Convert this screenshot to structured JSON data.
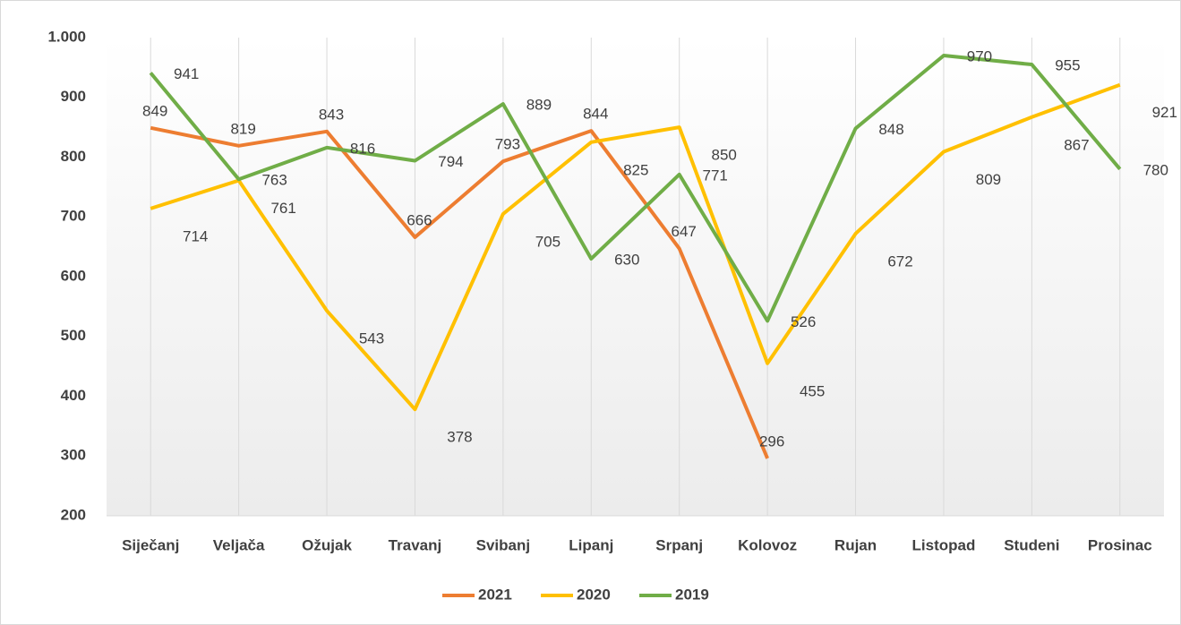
{
  "chart_data": {
    "type": "line",
    "categories": [
      "Siječanj",
      "Veljača",
      "Ožujak",
      "Travanj",
      "Svibanj",
      "Lipanj",
      "Srpanj",
      "Kolovoz",
      "Rujan",
      "Listopad",
      "Studeni",
      "Prosinac"
    ],
    "series": [
      {
        "name": "2021",
        "color": "#ed7d31",
        "values": [
          849,
          819,
          843,
          666,
          793,
          844,
          647,
          296,
          null,
          null,
          null,
          null
        ]
      },
      {
        "name": "2020",
        "color": "#ffc000",
        "values": [
          714,
          761,
          543,
          378,
          705,
          825,
          850,
          455,
          672,
          809,
          867,
          921
        ]
      },
      {
        "name": "2019",
        "color": "#70ad47",
        "values": [
          941,
          763,
          816,
          794,
          889,
          630,
          771,
          526,
          848,
          970,
          955,
          780
        ]
      }
    ],
    "ylim": [
      200,
      1000
    ],
    "yticks": [
      200,
      300,
      400,
      500,
      600,
      700,
      800,
      900,
      {
        "value": 1000,
        "label": "1.000"
      }
    ],
    "grid": true,
    "legend": "bottom"
  }
}
